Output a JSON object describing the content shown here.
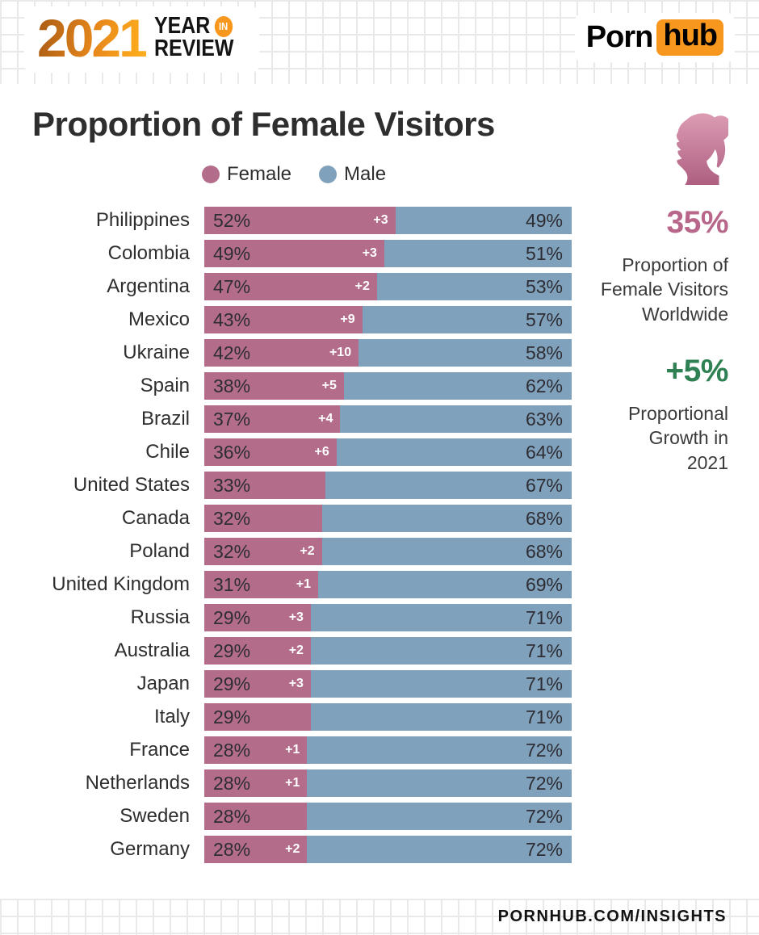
{
  "header": {
    "logo_year": "2021",
    "logo_line1": "YEAR",
    "logo_badge": "IN",
    "logo_line2": "REVIEW",
    "brand_porn": "Porn",
    "brand_hub": "hub"
  },
  "page": {
    "title": "Proportion of Female Visitors",
    "footer_url": "PORNHUB.COM/INSIGHTS"
  },
  "legend": {
    "female_label": "Female",
    "male_label": "Male"
  },
  "sidebar": {
    "stat_female_value": "35%",
    "stat_female_label": "Proportion of\nFemale Visitors\nWorldwide",
    "stat_growth_value": "+5%",
    "stat_growth_label": "Proportional\nGrowth in\n2021"
  },
  "colors": {
    "female": "#b36d8a",
    "male": "#80a1bc",
    "accent_orange": "#f7971d",
    "stat_pink": "#b8678a",
    "stat_green": "#2f8153",
    "grid_line": "#e9e9ec"
  },
  "chart_data": {
    "type": "bar",
    "orientation": "horizontal",
    "stacked": true,
    "title": "Proportion of Female Visitors",
    "unit": "%",
    "legend_position": "top",
    "value_labels": "inside",
    "categories": [
      "Philippines",
      "Colombia",
      "Argentina",
      "Mexico",
      "Ukraine",
      "Spain",
      "Brazil",
      "Chile",
      "United States",
      "Canada",
      "Poland",
      "United Kingdom",
      "Russia",
      "Australia",
      "Japan",
      "Italy",
      "France",
      "Netherlands",
      "Sweden",
      "Germany"
    ],
    "series": [
      {
        "name": "Female",
        "color": "#b36d8a",
        "values": [
          52,
          49,
          47,
          43,
          42,
          38,
          37,
          36,
          33,
          32,
          32,
          31,
          29,
          29,
          29,
          29,
          28,
          28,
          28,
          28
        ]
      },
      {
        "name": "Male",
        "color": "#80a1bc",
        "values": [
          49,
          51,
          53,
          57,
          58,
          62,
          63,
          64,
          67,
          68,
          68,
          69,
          71,
          71,
          71,
          71,
          72,
          72,
          72,
          72
        ]
      }
    ],
    "yearly_change_labels": [
      "+3",
      "+3",
      "+2",
      "+9",
      "+10",
      "+5",
      "+4",
      "+6",
      "",
      "",
      "+2",
      "+1",
      "+3",
      "+2",
      "+3",
      "",
      "+1",
      "+1",
      "",
      "+2"
    ]
  }
}
